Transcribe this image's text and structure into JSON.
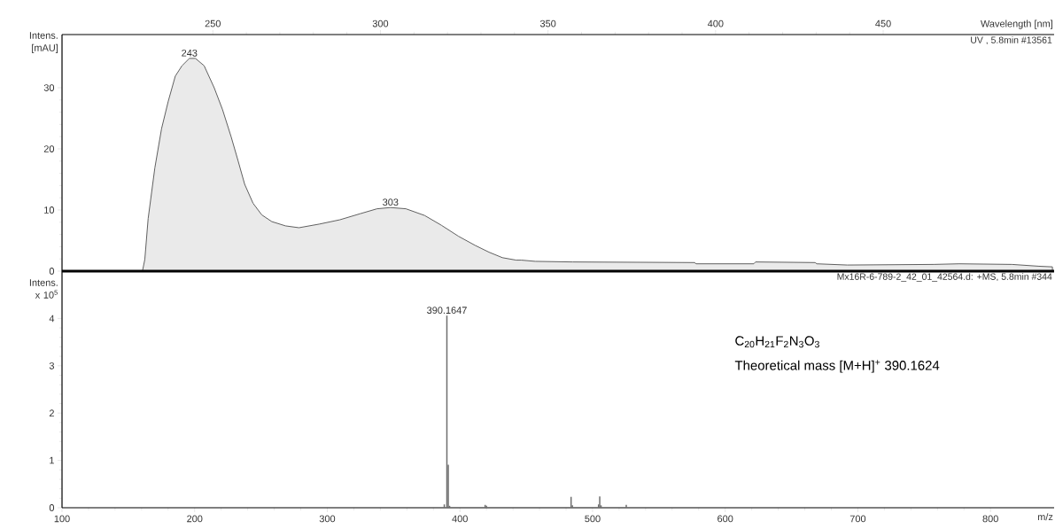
{
  "chart_data": [
    {
      "type": "area",
      "xlabel": "Wavelength [nm]",
      "ylabel": "Intens. [mAU]",
      "xlim": [
        205,
        501
      ],
      "xticks": [
        250,
        300,
        350,
        400,
        450
      ],
      "ylim": [
        0,
        38.7
      ],
      "yticks": [
        0,
        10,
        20,
        30
      ],
      "color": "#5f5f5f",
      "annotations": [
        "UV , 5.8min #13561",
        {
          "text": "243",
          "x": 243,
          "y": 34.8
        },
        {
          "text": "303",
          "x": 303,
          "y": 10.4
        }
      ],
      "x": [
        229.0,
        229.7,
        230.7,
        232.7,
        234.7,
        236.7,
        238.8,
        240.8,
        243.0,
        244.8,
        247.4,
        250.4,
        252.9,
        255.5,
        257.5,
        259.5,
        262.0,
        264.6,
        267.6,
        271.7,
        275.7,
        281.8,
        287.9,
        294.0,
        299.0,
        303.0,
        307.6,
        313.2,
        318.2,
        323.3,
        328.3,
        332.4,
        336.4,
        340.5,
        342.1,
        346.2,
        357.3,
        393.7,
        394.2,
        411.4,
        411.9,
        429.7,
        430.2,
        439.3,
        465.1,
        472.7,
        488.4,
        496.5,
        500.5
      ],
      "values": [
        0,
        1.9,
        8.6,
        16.9,
        23.3,
        27.8,
        31.9,
        33.6,
        34.8,
        34.8,
        33.6,
        30.0,
        26.4,
        21.9,
        18.1,
        14.2,
        11.1,
        9.2,
        8.1,
        7.4,
        7.1,
        7.7,
        8.4,
        9.4,
        10.2,
        10.4,
        10.2,
        9.1,
        7.5,
        5.7,
        4.2,
        3.1,
        2.2,
        1.8,
        1.8,
        1.6,
        1.5,
        1.4,
        1.2,
        1.2,
        1.5,
        1.4,
        1.2,
        1.0,
        1.1,
        1.2,
        1.1,
        0.8,
        0.7
      ]
    },
    {
      "type": "bar",
      "xlabel": "m/z",
      "ylabel": "Intens. x 10$^{5}$",
      "xlim": [
        100,
        848
      ],
      "xticks": [
        100,
        200,
        300,
        400,
        500,
        600,
        700,
        800
      ],
      "ylim": [
        0,
        5
      ],
      "yticks": [
        0,
        1,
        2,
        3,
        4
      ],
      "color": "#6e6e6e",
      "annotations": [
        "Mx16R-6-789-2_42_01_42564.d: +MS, 5.8min #344",
        "C$_{20}$H$_{21}$F$_{2}$N$_{3}$O$_{3}$",
        "Theoretical mass [M+H]$^{+}$ 390.1624",
        {
          "text": "390.1647",
          "x": 390.1647,
          "y": 4.06
        }
      ],
      "x": [
        388.2,
        390.1647,
        391.2,
        392.2,
        419.0,
        420.0,
        483.8,
        484.8,
        504.5,
        505.4,
        506.4,
        525.4
      ],
      "values": [
        0.07,
        4.06,
        0.91,
        0.04,
        0.06,
        0.04,
        0.23,
        0.05,
        0.07,
        0.24,
        0.05,
        0.06
      ]
    }
  ]
}
